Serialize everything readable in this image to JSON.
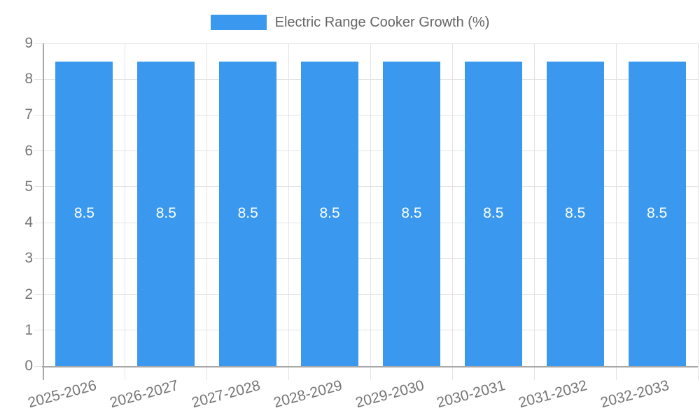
{
  "legend": {
    "label": "Electric Range Cooker Growth (%)"
  },
  "chart_data": {
    "type": "bar",
    "title": "Electric Range Cooker Growth (%)",
    "series_name": "Electric Range Cooker Growth (%)",
    "categories": [
      "2025-2026",
      "2026-2027",
      "2027-2028",
      "2028-2029",
      "2029-2030",
      "2030-2031",
      "2031-2032",
      "2032-2033"
    ],
    "values": [
      8.5,
      8.5,
      8.5,
      8.5,
      8.5,
      8.5,
      8.5,
      8.5
    ],
    "bar_labels": [
      "8.5",
      "8.5",
      "8.5",
      "8.5",
      "8.5",
      "8.5",
      "8.5",
      "8.5"
    ],
    "xlabel": "",
    "ylabel": "",
    "ylim": [
      0,
      9
    ],
    "yticks": [
      0,
      1,
      2,
      3,
      4,
      5,
      6,
      7,
      8,
      9
    ],
    "grid": true,
    "legend_position": "top",
    "x_label_rotation_deg": -15
  },
  "colors": {
    "bar": "#3A99EE",
    "grid": "#E3E3E3",
    "axis": "#A8A8A8",
    "tick_label": "#757575",
    "legend_text": "#666666",
    "bar_label": "#FFFFFF",
    "background": "#FFFFFF"
  }
}
